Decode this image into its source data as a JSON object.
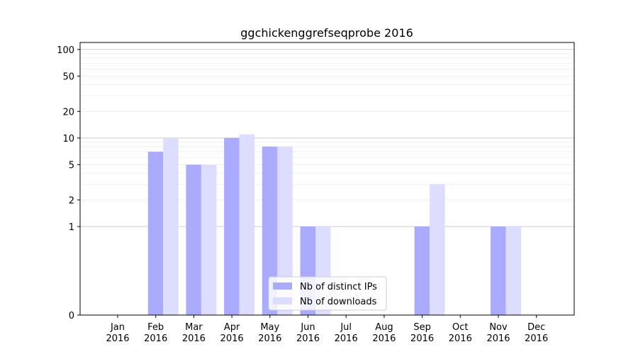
{
  "chart_data": {
    "type": "bar",
    "title": "ggchickenggrefseqprobe 2016",
    "xlabel": "",
    "ylabel": "",
    "yscale": "symlog",
    "ylim": [
      0,
      120
    ],
    "yticks": [
      0,
      1,
      2,
      5,
      10,
      20,
      50,
      100
    ],
    "categories": [
      "Jan\n2016",
      "Feb\n2016",
      "Mar\n2016",
      "Apr\n2016",
      "May\n2016",
      "Jun\n2016",
      "Jul\n2016",
      "Aug\n2016",
      "Sep\n2016",
      "Oct\n2016",
      "Nov\n2016",
      "Dec\n2016"
    ],
    "series": [
      {
        "name": "Nb of distinct IPs",
        "color": "#aaaaff",
        "values": [
          0,
          7,
          5,
          10,
          8,
          1,
          0,
          0,
          1,
          0,
          1,
          0
        ]
      },
      {
        "name": "Nb of downloads",
        "color": "#ddddff",
        "values": [
          0,
          10,
          5,
          11,
          8,
          1,
          0,
          0,
          3,
          0,
          1,
          0
        ]
      }
    ],
    "grid": true,
    "legend": "bottom-center"
  }
}
